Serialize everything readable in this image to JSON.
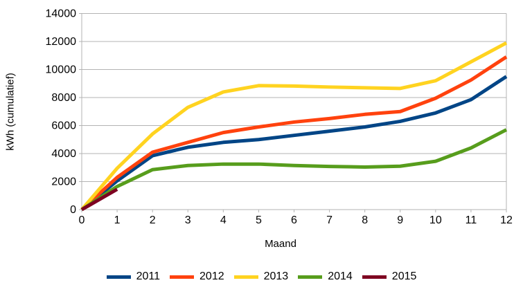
{
  "chart": {
    "background": "#ffffff",
    "grid_color": "#b3b3b3",
    "axis_color": "#b3b3b3"
  },
  "chart_data": {
    "type": "line",
    "title": "",
    "xlabel": "Maand",
    "ylabel": "kWh (cumulatief)",
    "x": [
      0,
      1,
      2,
      3,
      4,
      5,
      6,
      7,
      8,
      9,
      10,
      11,
      12
    ],
    "xlim": [
      0,
      12
    ],
    "ylim": [
      0,
      14000
    ],
    "ytick_step": 2000,
    "ytick_labels": [
      "0",
      "2000",
      "4000",
      "6000",
      "8000",
      "10000",
      "12000",
      "14000"
    ],
    "xtick_labels": [
      "0",
      "1",
      "2",
      "3",
      "4",
      "5",
      "6",
      "7",
      "8",
      "9",
      "10",
      "11",
      "12"
    ],
    "grid": "horizontal",
    "legend_position": "bottom",
    "series": [
      {
        "name": "2011",
        "color": "#004586",
        "values": [
          0,
          2050,
          3850,
          4450,
          4800,
          5000,
          5300,
          5600,
          5900,
          6300,
          6900,
          7850,
          9500
        ]
      },
      {
        "name": "2012",
        "color": "#ff420e",
        "values": [
          0,
          2300,
          4100,
          4800,
          5500,
          5900,
          6250,
          6500,
          6800,
          7000,
          7950,
          9250,
          10900
        ]
      },
      {
        "name": "2013",
        "color": "#ffd320",
        "values": [
          0,
          2950,
          5400,
          7300,
          8400,
          8850,
          8820,
          8750,
          8700,
          8650,
          9200,
          10550,
          11900
        ]
      },
      {
        "name": "2014",
        "color": "#579d1c",
        "values": [
          0,
          1650,
          2850,
          3150,
          3250,
          3250,
          3150,
          3080,
          3040,
          3100,
          3450,
          4400,
          5700
        ]
      },
      {
        "name": "2015",
        "color": "#7e0021",
        "values": [
          0,
          1450,
          null,
          null,
          null,
          null,
          null,
          null,
          null,
          null,
          null,
          null,
          null
        ]
      }
    ]
  }
}
